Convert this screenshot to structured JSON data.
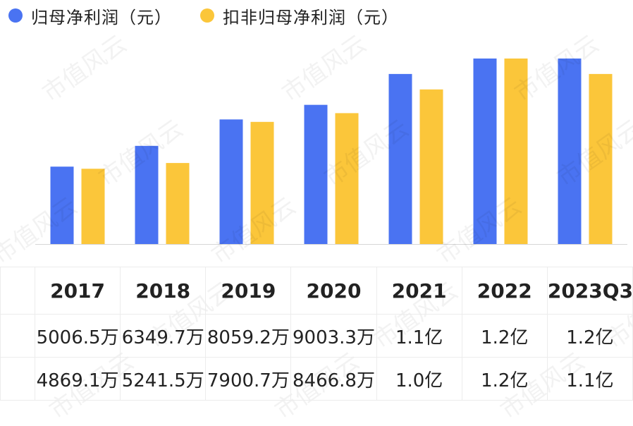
{
  "legend": [
    {
      "name": "归母净利润（元）",
      "color": "#4a73f2"
    },
    {
      "name": "扣非归母净利润（元）",
      "color": "#fbc63a"
    }
  ],
  "watermark": "市值风云",
  "chart_data": {
    "type": "bar",
    "categories": [
      "2017",
      "2018",
      "2019",
      "2020",
      "2021",
      "2022",
      "2023Q3"
    ],
    "series": [
      {
        "name": "归母净利润（元）",
        "color": "#4a73f2",
        "values": [
          50065000,
          63497000,
          80592000,
          90033000,
          110000000,
          120000000,
          120000000
        ]
      },
      {
        "name": "扣非归母净利润（元）",
        "color": "#fbc63a",
        "values": [
          48691000,
          52415000,
          79007000,
          84668000,
          100000000,
          120000000,
          110000000
        ]
      }
    ],
    "ylim": [
      0,
      125000000
    ],
    "grid": false,
    "legend_position": "top-left"
  },
  "table": {
    "years": [
      "2017",
      "2018",
      "2019",
      "2020",
      "2021",
      "2022",
      "2023Q3"
    ],
    "rows": [
      {
        "series": "归母净利润（元）",
        "color": "#4a73f2",
        "values": [
          "5006.5万",
          "6349.7万",
          "8059.2万",
          "9003.3万",
          "1.1亿",
          "1.2亿",
          "1.2亿"
        ]
      },
      {
        "series": "扣非归母净利润（元）",
        "color": "#fbc63a",
        "values": [
          "4869.1万",
          "5241.5万",
          "7900.7万",
          "8466.8万",
          "1.0亿",
          "1.2亿",
          "1.1亿"
        ]
      }
    ]
  }
}
